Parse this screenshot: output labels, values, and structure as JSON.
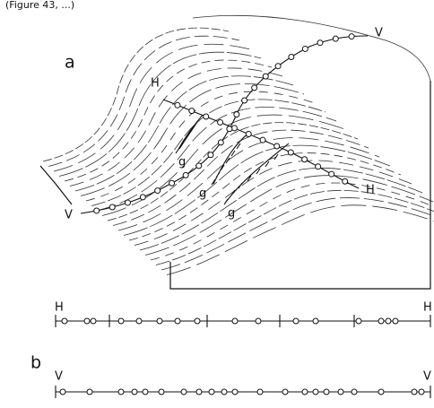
{
  "caption": "(Figure 43, ...)",
  "panel_a": {
    "label": "a",
    "transect_h_start": "H",
    "transect_h_end": "H",
    "transect_v_start": "V",
    "transect_v_end": "V",
    "gully_labels": [
      "g",
      "g",
      "g"
    ]
  },
  "panel_b": {
    "label": "b",
    "h_profile": {
      "start": "H",
      "end": "H"
    },
    "v_profile": {
      "start": "V",
      "end": "V"
    }
  }
}
